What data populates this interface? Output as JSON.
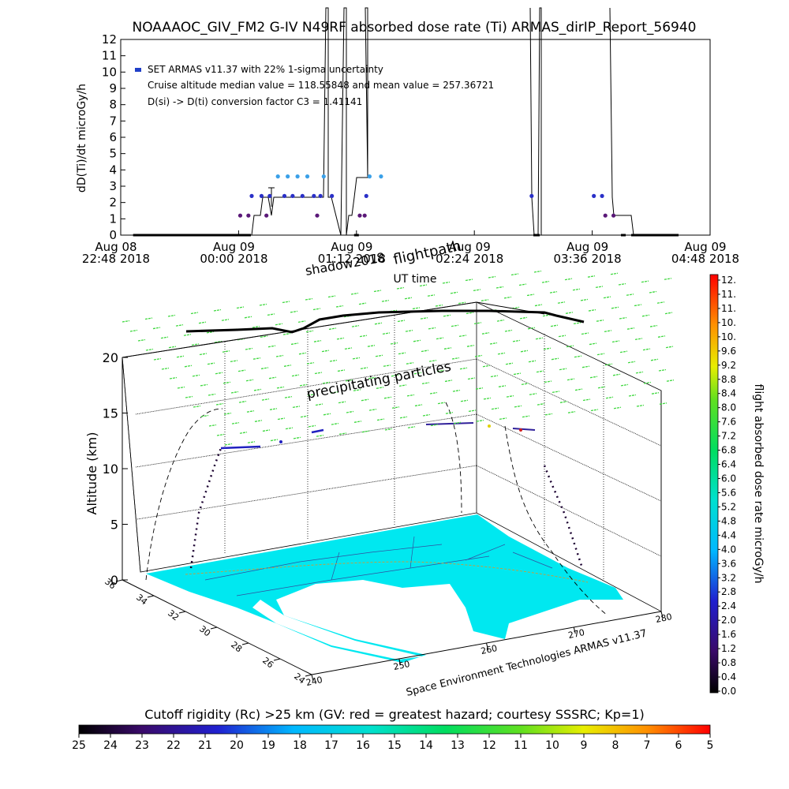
{
  "chart_data": [
    {
      "type": "scatter",
      "title": "NOAAAOC_GIV_FM2 G-IV    N49RF  absorbed dose rate (Ti) ARMAS_dirIP_Report_56940",
      "xlabel": "UT time",
      "ylabel": "dD(Ti)/dt microGy/h",
      "ylim": [
        0,
        12
      ],
      "y_ticks": [
        "0",
        "1",
        "2",
        "3",
        "4",
        "5",
        "6",
        "7",
        "8",
        "9",
        "10",
        "11",
        "12"
      ],
      "x_ticks": [
        {
          "l1": "Aug 08",
          "l2": "22:48 2018"
        },
        {
          "l1": "Aug 09",
          "l2": "00:00 2018"
        },
        {
          "l1": "Aug 09",
          "l2": "01:12 2018"
        },
        {
          "l1": "Aug 09",
          "l2": "02:24 2018"
        },
        {
          "l1": "Aug 09",
          "l2": "03:36 2018"
        },
        {
          "l1": "Aug 09",
          "l2": "04:48 2018"
        }
      ],
      "legend": {
        "series_label": "SET ARMAS v11.37 with 22% 1-sigma uncertainty",
        "line2": "Cruise altitude median value = 118.55848 and mean value = 257.36721",
        "line3": "D(si) -> D(ti) conversion factor C3 = 1.41141",
        "marker_color": "#2040c8",
        "placement": "top-left"
      },
      "series": [
        {
          "markers": [
            {
              "t": "22:57",
              "v": 0
            },
            {
              "t": "23:50",
              "v": 0
            },
            {
              "t": "00:01",
              "v": 1.2
            },
            {
              "t": "00:06",
              "v": 1.2
            },
            {
              "t": "00:08",
              "v": 2.4
            },
            {
              "t": "00:14",
              "v": 2.4
            },
            {
              "t": "00:17",
              "v": 1.2
            },
            {
              "t": "00:19",
              "v": 2.4
            },
            {
              "t": "00:24",
              "v": 3.6
            },
            {
              "t": "00:28",
              "v": 2.4
            },
            {
              "t": "00:30",
              "v": 3.6
            },
            {
              "t": "00:33",
              "v": 2.4
            },
            {
              "t": "00:36",
              "v": 3.6
            },
            {
              "t": "00:39",
              "v": 2.4
            },
            {
              "t": "00:42",
              "v": 3.6
            },
            {
              "t": "00:46",
              "v": 2.4
            },
            {
              "t": "00:48",
              "v": 1.2
            },
            {
              "t": "00:50",
              "v": 2.4
            },
            {
              "t": "00:52",
              "v": 3.6
            },
            {
              "t": "00:57",
              "v": 2.4
            },
            {
              "t": "01:12",
              "v": 0
            },
            {
              "t": "01:14",
              "v": 1.2
            },
            {
              "t": "01:17",
              "v": 1.2
            },
            {
              "t": "01:18",
              "v": 2.4
            },
            {
              "t": "01:20",
              "v": 3.6
            },
            {
              "t": "01:27",
              "v": 3.6
            },
            {
              "t": "02:59",
              "v": 2.4
            },
            {
              "t": "03:02",
              "v": 0
            },
            {
              "t": "03:37",
              "v": 2.4
            },
            {
              "t": "03:42",
              "v": 2.4
            },
            {
              "t": "03:44",
              "v": 1.2
            },
            {
              "t": "03:49",
              "v": 1.2
            },
            {
              "t": "03:55",
              "v": 0
            },
            {
              "t": "04:27",
              "v": 0
            }
          ]
        }
      ]
    },
    {
      "type": "scatter",
      "title": "",
      "ylabel": "Altitude (km)",
      "zlim": [
        0,
        20
      ],
      "z_ticks": [
        "0",
        "5",
        "10",
        "15",
        "20"
      ],
      "lat_ticks": [
        "36",
        "34",
        "32",
        "30",
        "28",
        "26",
        "24"
      ],
      "lon_ticks": [
        "240",
        "250",
        "260",
        "270",
        "280"
      ],
      "annotations": {
        "flightpath": "flightpath",
        "shadow": "shadow2018",
        "particles": "precipitating particles",
        "credit": "Space Environment Technologies ARMAS v11.37"
      },
      "colorbar": {
        "label": "flight absorbed dose rate microGy/h",
        "ticks": [
          "12.",
          "11.",
          "11.",
          "10.",
          "10.",
          "9.6",
          "9.2",
          "8.8",
          "8.4",
          "8.0",
          "7.6",
          "7.2",
          "6.8",
          "6.4",
          "6.0",
          "5.6",
          "5.2",
          "4.8",
          "4.4",
          "4.0",
          "3.6",
          "3.2",
          "2.8",
          "2.4",
          "2.0",
          "1.6",
          "1.2",
          "0.8",
          "0.4",
          "0.0"
        ]
      },
      "cutoff_rigidity": {
        "label": "Cutoff rigidity (Rc) >25 km (GV: red = greatest hazard; courtesy SSSRC; Kp=1)",
        "ticks": [
          "25",
          "24",
          "23",
          "22",
          "21",
          "20",
          "19",
          "18",
          "17",
          "16",
          "15",
          "14",
          "13",
          "12",
          "11",
          "10",
          "9",
          "8",
          "7",
          "6",
          "5"
        ]
      }
    }
  ]
}
